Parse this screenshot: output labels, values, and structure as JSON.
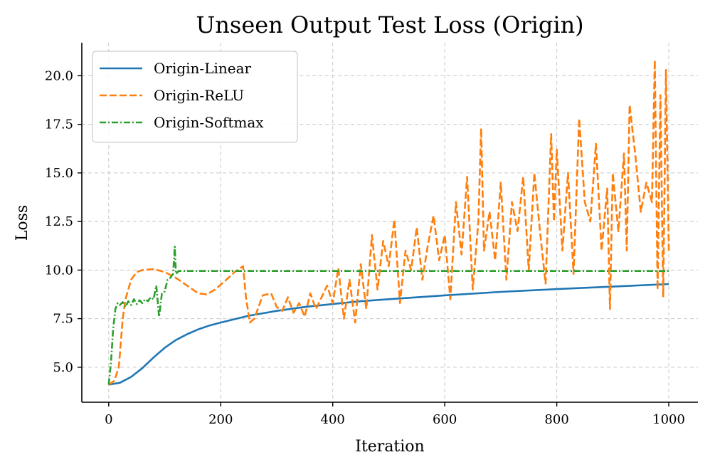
{
  "chart_data": {
    "type": "line",
    "title": "Unseen Output Test Loss (Origin)",
    "xlabel": "Iteration",
    "ylabel": "Loss",
    "xlim": [
      -48,
      1052
    ],
    "ylim": [
      3.2,
      21.7
    ],
    "grid": true,
    "legend_position": "top-left",
    "xticks": [
      0,
      200,
      400,
      600,
      800,
      1000
    ],
    "yticks": [
      5.0,
      7.5,
      10.0,
      12.5,
      15.0,
      17.5,
      20.0
    ],
    "xtick_labels": [
      "0",
      "200",
      "400",
      "600",
      "800",
      "1000"
    ],
    "ytick_labels": [
      "5.0",
      "7.5",
      "10.0",
      "12.5",
      "15.0",
      "17.5",
      "20.0"
    ],
    "series": [
      {
        "name": "Origin-Linear",
        "color": "#1f77b4",
        "style": "solid",
        "x": [
          0,
          20,
          40,
          60,
          80,
          100,
          120,
          140,
          160,
          180,
          200,
          250,
          300,
          350,
          400,
          450,
          500,
          600,
          700,
          800,
          900,
          1000
        ],
        "y": [
          4.1,
          4.2,
          4.5,
          4.95,
          5.5,
          6.0,
          6.4,
          6.7,
          6.95,
          7.15,
          7.3,
          7.65,
          7.9,
          8.1,
          8.25,
          8.4,
          8.5,
          8.7,
          8.88,
          9.02,
          9.15,
          9.28
        ]
      },
      {
        "name": "Origin-ReLU",
        "color": "#ff7f0e",
        "style": "dashed",
        "x": [
          0,
          10,
          18,
          25,
          30,
          40,
          50,
          60,
          80,
          100,
          120,
          140,
          160,
          175,
          190,
          210,
          225,
          240,
          245,
          252,
          260,
          275,
          290,
          300,
          310,
          320,
          330,
          340,
          350,
          360,
          370,
          380,
          390,
          400,
          410,
          420,
          430,
          440,
          450,
          460,
          470,
          480,
          490,
          500,
          510,
          520,
          530,
          540,
          550,
          560,
          570,
          580,
          590,
          600,
          610,
          620,
          630,
          640,
          650,
          660,
          665,
          670,
          680,
          690,
          700,
          710,
          720,
          730,
          740,
          750,
          760,
          770,
          780,
          790,
          795,
          800,
          810,
          820,
          830,
          840,
          850,
          860,
          870,
          880,
          890,
          895,
          900,
          910,
          920,
          925,
          930,
          940,
          950,
          960,
          970,
          975,
          980,
          985,
          990,
          995,
          1000
        ],
        "y": [
          4.1,
          4.3,
          5.0,
          7.5,
          8.5,
          9.5,
          9.9,
          10.0,
          10.05,
          9.9,
          9.6,
          9.2,
          8.8,
          8.75,
          9.0,
          9.5,
          9.9,
          10.2,
          8.6,
          7.3,
          7.5,
          8.7,
          8.8,
          8.1,
          7.9,
          8.6,
          7.8,
          8.3,
          7.6,
          8.8,
          8.0,
          8.6,
          9.2,
          8.3,
          10.1,
          7.5,
          9.5,
          7.3,
          10.3,
          8.0,
          11.8,
          9.0,
          11.5,
          10.2,
          12.6,
          8.3,
          11.0,
          10.0,
          12.2,
          9.5,
          11.3,
          12.8,
          10.5,
          11.8,
          8.5,
          13.5,
          10.8,
          14.8,
          9.0,
          12.5,
          17.3,
          11.0,
          13.0,
          10.5,
          14.5,
          9.5,
          13.5,
          12.0,
          14.8,
          10.0,
          15.0,
          12.0,
          9.3,
          17.0,
          12.5,
          16.2,
          11.0,
          15.0,
          9.8,
          17.8,
          13.5,
          12.5,
          16.5,
          11.0,
          14.2,
          8.0,
          15.0,
          12.0,
          16.0,
          11.0,
          18.5,
          16.0,
          13.0,
          14.5,
          13.5,
          20.8,
          9.0,
          19.0,
          8.6,
          20.3,
          11.0
        ]
      },
      {
        "name": "Origin-Softmax",
        "color": "#2ca02c",
        "style": "dashdot",
        "x": [
          0,
          4,
          8,
          12,
          16,
          20,
          25,
          30,
          35,
          40,
          45,
          50,
          55,
          60,
          65,
          70,
          75,
          80,
          85,
          90,
          95,
          100,
          105,
          110,
          115,
          118,
          120,
          125,
          200,
          400,
          600,
          800,
          1000
        ],
        "y": [
          4.1,
          5.2,
          7.0,
          8.0,
          8.3,
          8.2,
          8.35,
          8.1,
          8.4,
          8.2,
          8.5,
          8.25,
          8.45,
          8.3,
          8.5,
          8.4,
          8.6,
          8.5,
          9.2,
          7.6,
          8.8,
          8.9,
          9.5,
          9.6,
          9.8,
          11.2,
          9.8,
          9.95,
          9.95,
          9.95,
          9.95,
          9.95,
          9.95
        ]
      }
    ]
  }
}
